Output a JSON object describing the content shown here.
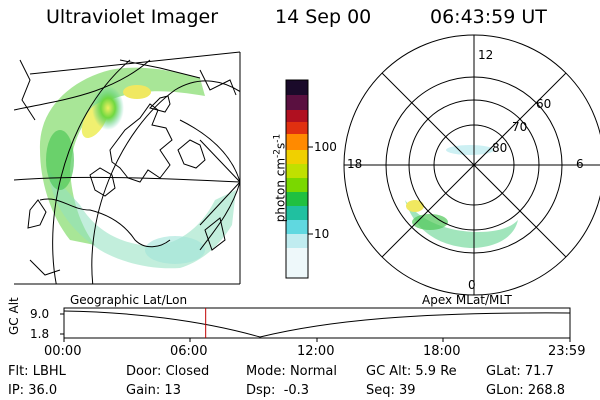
{
  "header": {
    "title": "Ultraviolet Imager",
    "date": "14 Sep 00",
    "time": "06:43:59 UT"
  },
  "colorbar": {
    "unit_label": "photon cm",
    "unit_sup1": "-2",
    "unit_mid": "s",
    "unit_sup2": "-1",
    "ticks": [
      "100",
      "10"
    ],
    "colors": [
      "#1a0a2a",
      "#5a1040",
      "#b01020",
      "#e03010",
      "#ff8a00",
      "#f0d000",
      "#c0e000",
      "#7ad800",
      "#20c040",
      "#20c0a0",
      "#60d8e0",
      "#c0ecf0",
      "#ffffff"
    ]
  },
  "polar_plot": {
    "mlt_labels": [
      "12",
      "18",
      "6",
      "0"
    ],
    "mlat_labels": [
      "60",
      "70",
      "80"
    ]
  },
  "panel_labels": {
    "left": "Geographic Lat/Lon",
    "right": "Apex MLat/MLT"
  },
  "altitude_plot": {
    "axis_label": "GC Alt",
    "y_ticks": [
      "9.0",
      "1.8"
    ],
    "x_ticks": [
      "00:00",
      "06:00",
      "12:00",
      "18:00",
      "23:59"
    ],
    "current_time_fraction": 0.28
  },
  "status": {
    "flt_label": "Flt:",
    "flt_value": "LBHL",
    "ip_label": "IP:",
    "ip_value": "36.0",
    "door_label": "Door:",
    "door_value": "Closed",
    "gain_label": "Gain:",
    "gain_value": "13",
    "mode_label": "Mode:",
    "mode_value": "Normal",
    "dsp_label": "Dsp:",
    "dsp_value": "-0.3",
    "gcalt_label": "GC Alt:",
    "gcalt_value": "5.9 Re",
    "seq_label": "Seq:",
    "seq_value": "39",
    "glat_label": "GLat:",
    "glat_value": "71.7",
    "glon_label": "GLon:",
    "glon_value": "268.8"
  }
}
